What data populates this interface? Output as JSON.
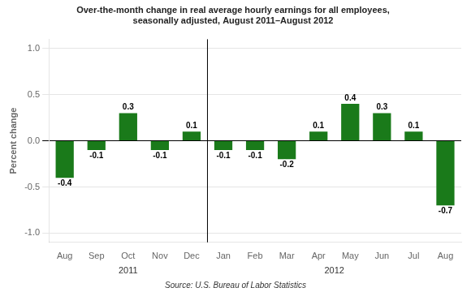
{
  "chart_data": {
    "type": "bar",
    "title": [
      "Over-the-month change in real average hourly earnings for all employees,",
      "seasonally adjusted, August 2011–August 2012"
    ],
    "categories": [
      "Aug",
      "Sep",
      "Oct",
      "Nov",
      "Dec",
      "Jan",
      "Feb",
      "Mar",
      "Apr",
      "May",
      "Jun",
      "Jul",
      "Aug"
    ],
    "values": [
      -0.4,
      -0.1,
      0.3,
      -0.1,
      0.1,
      -0.1,
      -0.1,
      -0.2,
      0.1,
      0.4,
      0.3,
      0.1,
      -0.7
    ],
    "color": "#1a7a1a",
    "ylabel": "Percent change",
    "ylim": [
      -1.1,
      1.1
    ],
    "yticks": [
      {
        "value": -1.0,
        "label": "-1.0"
      },
      -0.5,
      {
        "value": 0.0,
        "label": "0.0"
      },
      0.5,
      {
        "value": 1.0,
        "label": "1.0"
      }
    ],
    "grid": true,
    "data_labels": true,
    "annotations": [
      {
        "text": "2011",
        "x": 2.0
      },
      {
        "text": "2012",
        "x": 8.5
      },
      {
        "type": "vline",
        "x": 4.5
      }
    ],
    "source": "Source: U.S. Bureau of Labor Statistics"
  }
}
